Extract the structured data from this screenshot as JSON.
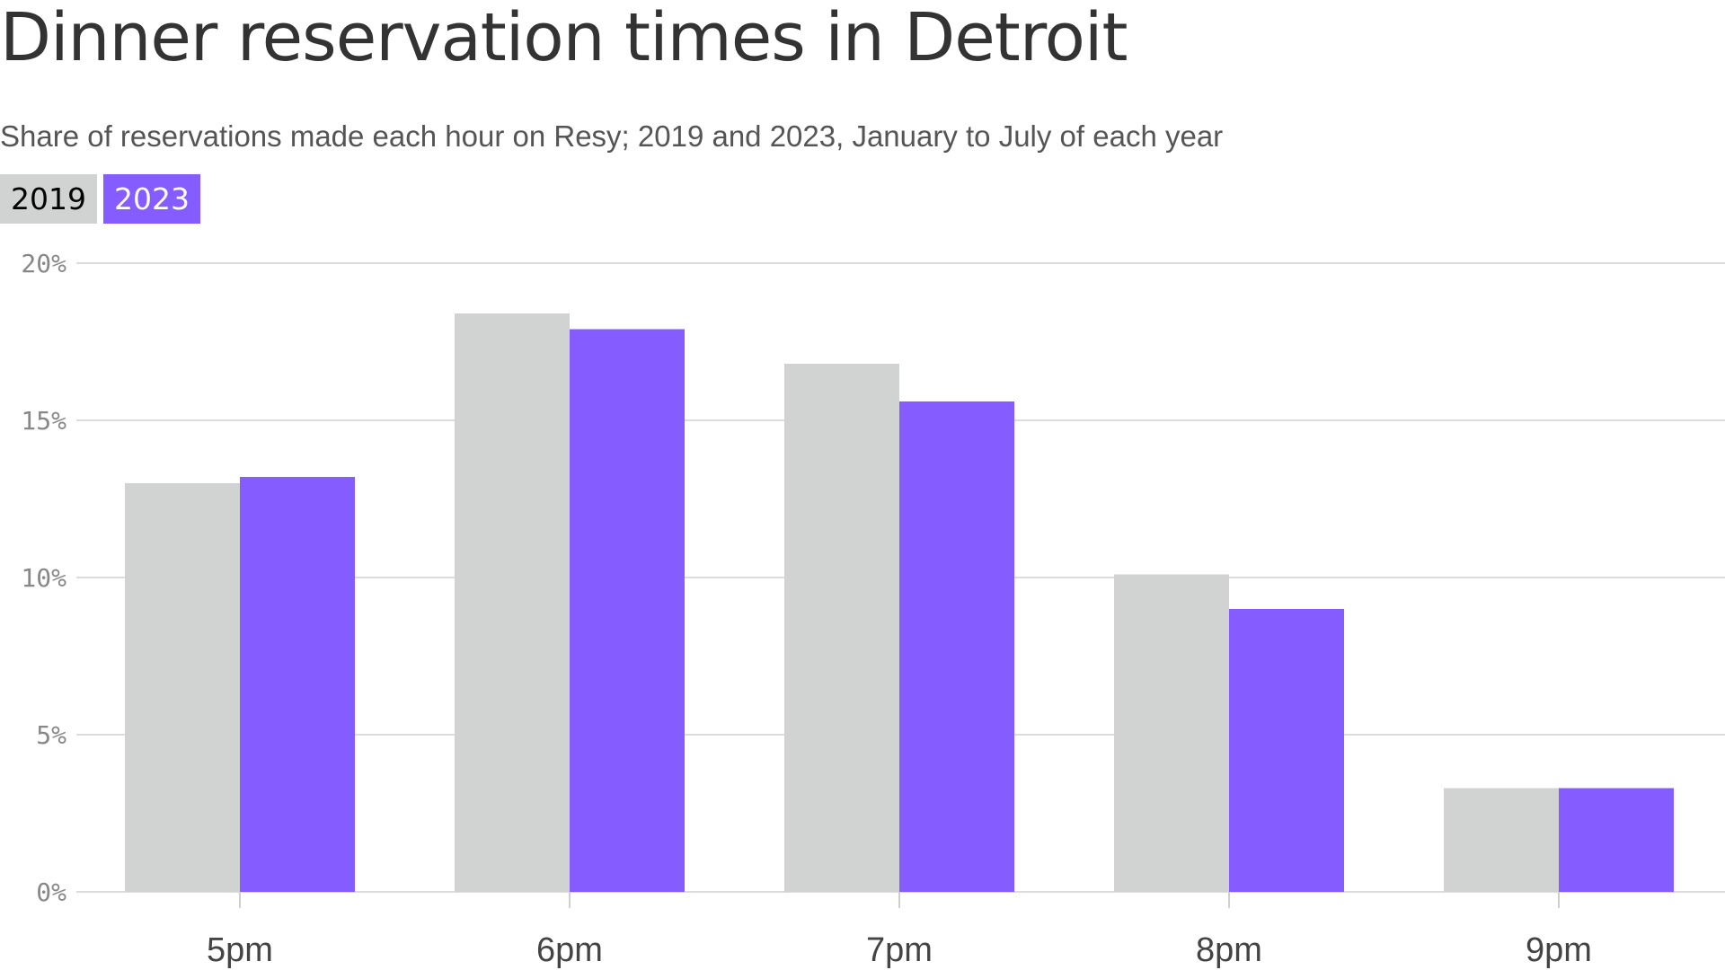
{
  "chart_data": {
    "type": "bar",
    "title": "Dinner reservation times in Detroit",
    "subtitle": "Share of reservations made each hour on Resy; 2019 and 2023, January to July of each year",
    "categories": [
      "5pm",
      "6pm",
      "7pm",
      "8pm",
      "9pm"
    ],
    "series": [
      {
        "name": "2019",
        "color": "#d1d3d3",
        "values": [
          13.0,
          18.4,
          16.8,
          10.1,
          3.3
        ]
      },
      {
        "name": "2023",
        "color": "#855cff",
        "values": [
          13.2,
          17.9,
          15.6,
          9.0,
          3.3
        ]
      }
    ],
    "ylim": [
      0,
      20
    ],
    "yticks": [
      0,
      5,
      10,
      15,
      20
    ],
    "ytick_labels": [
      "0%",
      "5%",
      "10%",
      "15%",
      "20%"
    ],
    "xlabel": "",
    "ylabel": "",
    "grid": true,
    "legend_position": "top-left"
  }
}
